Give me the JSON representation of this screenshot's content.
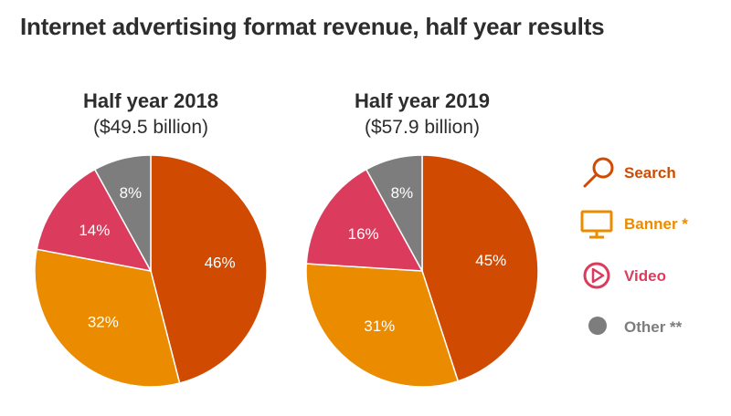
{
  "title": "Internet advertising format revenue, half year results",
  "colors": {
    "search": "#d04a02",
    "banner": "#eb8c00",
    "video": "#db3c5e",
    "other": "#7d7d7d",
    "other_label": "#7d7d7d"
  },
  "chart_data": [
    {
      "type": "pie",
      "title": "Half year 2018",
      "subtitle": "($49.5 billion)",
      "slices": [
        {
          "category": "Search",
          "value": 46,
          "label": "46%"
        },
        {
          "category": "Banner *",
          "value": 32,
          "label": "32%"
        },
        {
          "category": "Video",
          "value": 14,
          "label": "14%"
        },
        {
          "category": "Other **",
          "value": 8,
          "label": "8%"
        }
      ]
    },
    {
      "type": "pie",
      "title": "Half year 2019",
      "subtitle": "($57.9 billion)",
      "slices": [
        {
          "category": "Search",
          "value": 45,
          "label": "45%"
        },
        {
          "category": "Banner *",
          "value": 31,
          "label": "31%"
        },
        {
          "category": "Video",
          "value": 16,
          "label": "16%"
        },
        {
          "category": "Other **",
          "value": 8,
          "label": "8%"
        }
      ]
    }
  ],
  "legend": {
    "placement": "right",
    "items": [
      {
        "label": "Search",
        "icon": "magnifier-icon"
      },
      {
        "label": "Banner *",
        "icon": "monitor-icon"
      },
      {
        "label": "Video",
        "icon": "play-icon"
      },
      {
        "label": "Other **",
        "icon": "dot-icon"
      }
    ]
  }
}
